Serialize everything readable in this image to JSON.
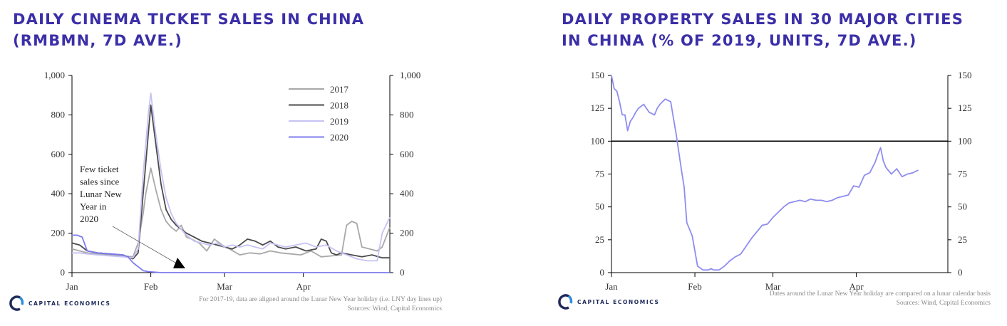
{
  "brand": "CAPITAL ECONOMICS",
  "chart_data": [
    {
      "type": "line",
      "title_line1": "DAILY CINEMA TICKET SALES IN CHINA",
      "title_line2": "(RMBMN, 7D AVE.)",
      "ylim": [
        0,
        1000
      ],
      "yticks": [
        0,
        200,
        400,
        600,
        800,
        1000
      ],
      "ytick_labels": [
        "0",
        "200",
        "400",
        "600",
        "800",
        "1,000"
      ],
      "xlim": [
        0,
        125
      ],
      "xticks": [
        0,
        31,
        60,
        91
      ],
      "xtick_labels": [
        "Jan",
        "Feb",
        "Mar",
        "Apr"
      ],
      "annotation": [
        "Few ticket",
        "sales since",
        "Lunar New",
        "Year in",
        "2020"
      ],
      "footnote": "For 2017-19, data are aligned around the Lunar New Year holiday (i.e. LNY day lines up)",
      "source": "Sources: Wind, Capital Economics",
      "series": [
        {
          "name": "2017",
          "color": "#a8a8a8",
          "x": [
            0,
            3,
            6,
            10,
            15,
            20,
            24,
            26,
            28,
            29,
            31,
            33,
            35,
            37,
            39,
            41,
            43,
            45,
            47,
            50,
            53,
            56,
            59,
            62,
            66,
            70,
            74,
            78,
            82,
            86,
            90,
            94,
            98,
            102,
            106,
            108,
            110,
            112,
            114,
            117,
            120,
            122,
            125
          ],
          "y": [
            120,
            110,
            100,
            95,
            90,
            85,
            80,
            150,
            300,
            400,
            530,
            420,
            320,
            260,
            230,
            210,
            240,
            180,
            170,
            150,
            110,
            170,
            140,
            120,
            90,
            100,
            95,
            110,
            100,
            95,
            90,
            110,
            80,
            85,
            90,
            240,
            260,
            250,
            130,
            120,
            110,
            130,
            230
          ]
        },
        {
          "name": "2018",
          "color": "#4a4a4a",
          "x": [
            0,
            3,
            6,
            10,
            15,
            20,
            24,
            26,
            28,
            30,
            31,
            33,
            35,
            37,
            39,
            41,
            43,
            45,
            48,
            51,
            54,
            57,
            60,
            63,
            66,
            69,
            72,
            75,
            78,
            81,
            84,
            88,
            92,
            96,
            98,
            100,
            102,
            104,
            106,
            110,
            114,
            118,
            122,
            125
          ],
          "y": [
            150,
            140,
            110,
            100,
            95,
            90,
            70,
            100,
            400,
            700,
            850,
            650,
            450,
            320,
            270,
            240,
            220,
            200,
            180,
            160,
            150,
            140,
            130,
            120,
            140,
            170,
            160,
            140,
            160,
            130,
            120,
            130,
            110,
            120,
            170,
            160,
            100,
            90,
            100,
            90,
            80,
            90,
            75,
            75
          ]
        },
        {
          "name": "2019",
          "color": "#c6c2f4",
          "x": [
            0,
            3,
            6,
            10,
            15,
            20,
            24,
            26,
            28,
            30,
            31,
            33,
            35,
            37,
            39,
            41,
            43,
            45,
            48,
            51,
            54,
            57,
            60,
            63,
            66,
            69,
            72,
            75,
            78,
            81,
            84,
            88,
            92,
            96,
            100,
            104,
            108,
            112,
            116,
            120,
            122,
            125
          ],
          "y": [
            100,
            100,
            95,
            90,
            85,
            80,
            75,
            120,
            500,
            800,
            910,
            700,
            520,
            380,
            300,
            250,
            220,
            190,
            160,
            150,
            140,
            150,
            130,
            140,
            130,
            140,
            130,
            120,
            150,
            140,
            130,
            140,
            150,
            130,
            140,
            110,
            90,
            70,
            60,
            60,
            200,
            280
          ]
        },
        {
          "name": "2020",
          "color": "#7d7bee",
          "x": [
            0,
            2,
            4,
            6,
            10,
            15,
            20,
            22,
            24,
            26,
            28,
            30,
            35,
            40,
            60,
            90,
            125
          ],
          "y": [
            190,
            190,
            180,
            110,
            100,
            95,
            90,
            80,
            50,
            30,
            10,
            5,
            0,
            0,
            0,
            0,
            0
          ]
        }
      ]
    },
    {
      "type": "line",
      "title_line1": "DAILY PROPERTY SALES IN 30 MAJOR CITIES",
      "title_line2": "IN CHINA (% OF 2019, UNITS, 7D AVE.)",
      "ylim": [
        0,
        150
      ],
      "yticks": [
        0,
        25,
        50,
        75,
        100,
        125,
        150
      ],
      "ytick_labels": [
        "0",
        "25",
        "50",
        "75",
        "100",
        "125",
        "150"
      ],
      "xlim": [
        0,
        125
      ],
      "xticks": [
        0,
        31,
        60,
        91
      ],
      "xtick_labels": [
        "Jan",
        "Feb",
        "Mar",
        "Apr"
      ],
      "reference_line": 100,
      "footnote": "Dates around the Lunar New Year holiday are compared on a lunar calendar basis",
      "source": "Sources: Wind, Capital Economics",
      "series": [
        {
          "name": "Property sales",
          "color": "#8f8cf0",
          "x": [
            0,
            1,
            2,
            3,
            4,
            5,
            6,
            7,
            8,
            9,
            10,
            12,
            14,
            15,
            16,
            17,
            18,
            19,
            20,
            21,
            22,
            23,
            24,
            25,
            26,
            27,
            28,
            30,
            32,
            34,
            35,
            36,
            37,
            38,
            40,
            42,
            44,
            46,
            48,
            50,
            52,
            54,
            56,
            58,
            60,
            62,
            64,
            66,
            68,
            70,
            72,
            74,
            76,
            78,
            80,
            82,
            84,
            86,
            88,
            90,
            92,
            94,
            96,
            98,
            99,
            100,
            101,
            102,
            104,
            106,
            108,
            110,
            112,
            114
          ],
          "y": [
            150,
            140,
            138,
            130,
            120,
            120,
            108,
            115,
            118,
            122,
            125,
            128,
            122,
            121,
            120,
            125,
            128,
            130,
            132,
            131,
            130,
            118,
            106,
            92,
            78,
            65,
            38,
            28,
            5,
            2,
            2,
            2,
            3,
            2,
            2,
            5,
            9,
            12,
            14,
            20,
            26,
            31,
            36,
            37,
            42,
            46,
            50,
            53,
            54,
            55,
            54,
            56,
            55,
            55,
            54,
            55,
            57,
            58,
            59,
            66,
            65,
            74,
            76,
            84,
            90,
            95,
            85,
            80,
            75,
            79,
            73,
            75,
            76,
            78
          ]
        }
      ]
    }
  ]
}
